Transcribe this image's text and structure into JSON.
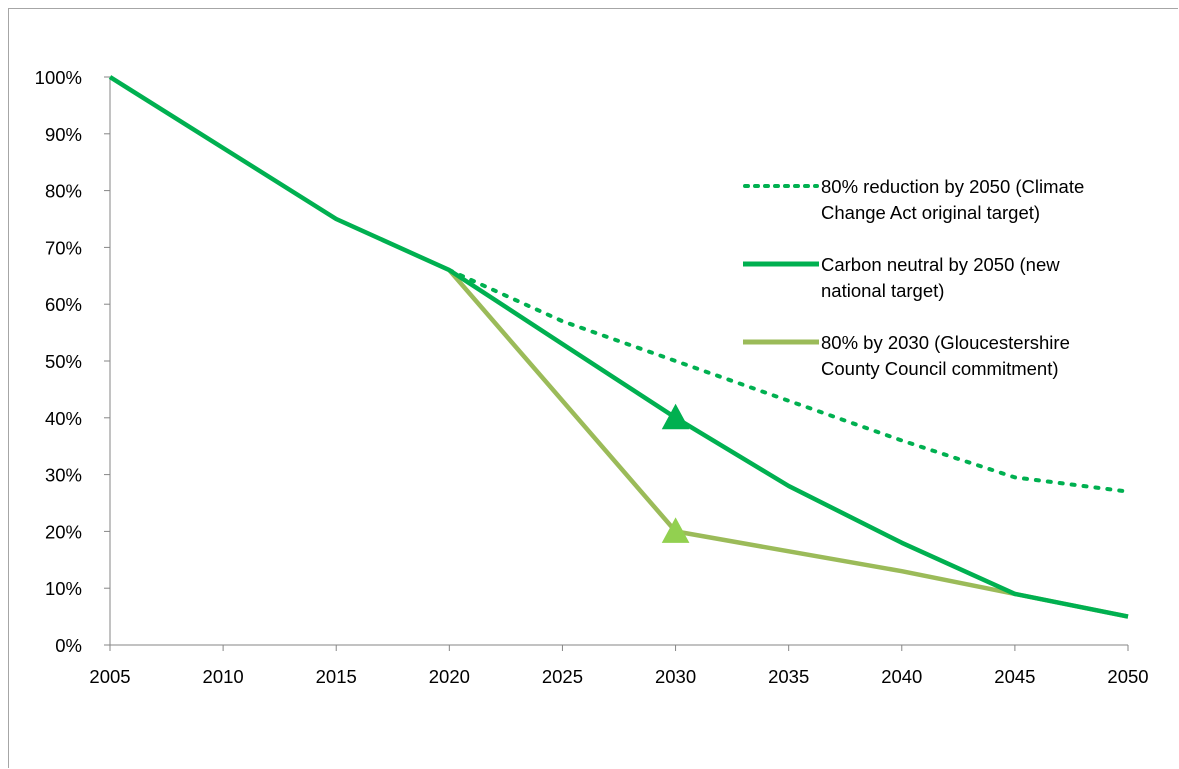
{
  "chart_data": {
    "type": "line",
    "title": "",
    "xlabel": "",
    "ylabel": "",
    "x": [
      2005,
      2010,
      2015,
      2020,
      2025,
      2030,
      2035,
      2040,
      2045,
      2050
    ],
    "x_tick_labels": [
      "2005",
      "2010",
      "2015",
      "2020",
      "2025",
      "2030",
      "2035",
      "2040",
      "2045",
      "2050"
    ],
    "y_tick_labels": [
      "0%",
      "10%",
      "20%",
      "30%",
      "40%",
      "50%",
      "60%",
      "70%",
      "80%",
      "90%",
      "100%"
    ],
    "xlim": [
      2005,
      2050
    ],
    "ylim": [
      0,
      100
    ],
    "y_unit": "%",
    "grid": false,
    "legend_position": "right",
    "series": [
      {
        "name": "80% reduction by 2050 (Climate Change Act original target)",
        "name_lines": [
          "80% reduction by 2050 (Climate",
          "Change Act original target)"
        ],
        "style": "dotted",
        "color": "#00b050",
        "x": [
          2020,
          2025,
          2030,
          2035,
          2040,
          2045,
          2050
        ],
        "values": [
          66,
          57,
          50,
          43,
          36,
          29.5,
          27
        ]
      },
      {
        "name": "Carbon neutral by 2050 (new national target)",
        "name_lines": [
          "Carbon neutral by 2050 (new",
          "national target)"
        ],
        "style": "solid",
        "color": "#00b050",
        "x": [
          2005,
          2010,
          2015,
          2020,
          2025,
          2030,
          2035,
          2040,
          2045,
          2050
        ],
        "values": [
          100,
          87.5,
          75,
          66,
          53,
          40,
          28,
          18,
          9,
          5
        ],
        "marker": {
          "x": 2030,
          "value": 40,
          "shape": "triangle",
          "color": "#00b050"
        }
      },
      {
        "name": "80% by 2030 (Gloucestershire County Council commitment)",
        "name_lines": [
          "80% by 2030 (Gloucestershire",
          "County Council commitment)"
        ],
        "style": "solid",
        "color": "#9bbb59",
        "x": [
          2020,
          2030,
          2035,
          2040,
          2045,
          2050
        ],
        "values": [
          66,
          20,
          16.5,
          13,
          9,
          5
        ],
        "marker": {
          "x": 2030,
          "value": 20,
          "shape": "triangle",
          "color": "#92d050"
        }
      }
    ]
  }
}
